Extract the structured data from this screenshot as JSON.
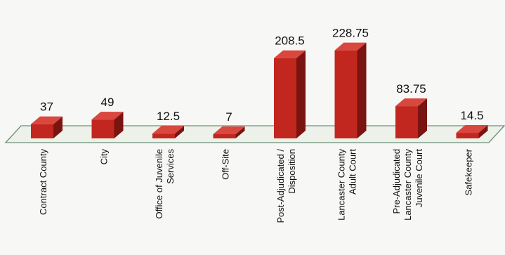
{
  "chart_data": {
    "type": "bar",
    "categories": [
      "Contract County",
      "City",
      "Office of Juvenile Services",
      "Off-Site",
      "Post-Adjudicated / Disposition",
      "Lancaster County Adult Court",
      "Pre-Adjudicated Lancaster County Juvenile Court",
      "Safekeeper"
    ],
    "category_lines": [
      [
        "Contract County"
      ],
      [
        "City"
      ],
      [
        "Office of Juvenile",
        "Services"
      ],
      [
        "Off-Site"
      ],
      [
        "Post-Adjudicated /",
        "Disposition"
      ],
      [
        "Lancaster County",
        "Adult Court"
      ],
      [
        "Pre-Adjudicated",
        "Lancaster County",
        "Juvenile Court"
      ],
      [
        "Safekeeper"
      ]
    ],
    "values": [
      37,
      49,
      12.5,
      7,
      208.5,
      228.75,
      83.75,
      14.5
    ],
    "value_labels": [
      "37",
      "49",
      "12.5",
      "7",
      "208.5",
      "228.75",
      "83.75",
      "14.5"
    ],
    "ylim": [
      0,
      250
    ],
    "title": "",
    "xlabel": "",
    "ylabel": "",
    "legend": "none",
    "grid": false,
    "colors": {
      "bar_front": "#c1271f",
      "bar_side": "#7a1410",
      "bar_top": "#d9473e",
      "floor_line": "#6b8f7a",
      "floor_fill": "#eef0ea"
    }
  }
}
